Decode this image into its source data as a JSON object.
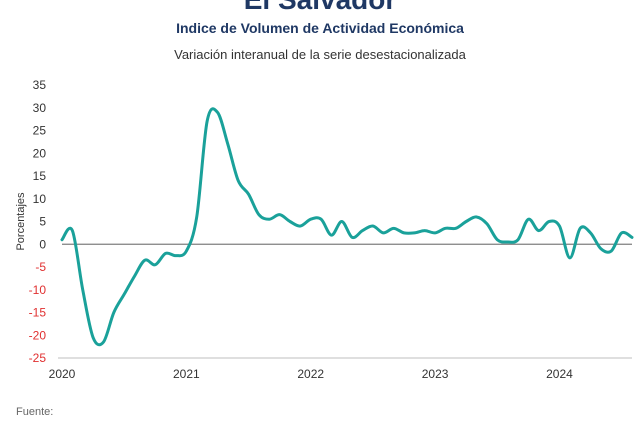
{
  "chart_data": {
    "type": "line",
    "title": "El Salvador",
    "subtitle": "Indice de Volumen de  Actividad Económica",
    "subtitle2": "Variación interanual de la serie desestacionalizada",
    "ylabel": "Porcentajes",
    "xlabel": "",
    "ylim": [
      -25,
      35
    ],
    "yticks": [
      35,
      30,
      25,
      20,
      15,
      10,
      5,
      0,
      -5,
      -10,
      -15,
      -20,
      -25
    ],
    "xlim": [
      "2020-01",
      "2024-08"
    ],
    "xticks": [
      "2020",
      "2021",
      "2022",
      "2023",
      "2024"
    ],
    "negative_tick_color": "#e03030",
    "positive_tick_color": "#333333",
    "zero_line_color": "#7f7f7f",
    "grid": false,
    "series": [
      {
        "color": "#1aa19a",
        "x": [
          "2020-01",
          "2020-02",
          "2020-03",
          "2020-04",
          "2020-05",
          "2020-06",
          "2020-07",
          "2020-08",
          "2020-09",
          "2020-10",
          "2020-11",
          "2020-12",
          "2021-01",
          "2021-02",
          "2021-03",
          "2021-04",
          "2021-05",
          "2021-06",
          "2021-07",
          "2021-08",
          "2021-09",
          "2021-10",
          "2021-11",
          "2021-12",
          "2022-01",
          "2022-02",
          "2022-03",
          "2022-04",
          "2022-05",
          "2022-06",
          "2022-07",
          "2022-08",
          "2022-09",
          "2022-10",
          "2022-11",
          "2022-12",
          "2023-01",
          "2023-02",
          "2023-03",
          "2023-04",
          "2023-05",
          "2023-06",
          "2023-07",
          "2023-08",
          "2023-09",
          "2023-10",
          "2023-11",
          "2023-12",
          "2024-01",
          "2024-02",
          "2024-03",
          "2024-04",
          "2024-05",
          "2024-06",
          "2024-07",
          "2024-08"
        ],
        "values": [
          1.0,
          3.0,
          -10.0,
          -20.5,
          -21.5,
          -15.0,
          -11.0,
          -7.0,
          -3.5,
          -4.5,
          -2.0,
          -2.5,
          -1.5,
          6.0,
          27.0,
          29.0,
          22.0,
          14.0,
          11.0,
          6.5,
          5.5,
          6.5,
          5.0,
          4.0,
          5.5,
          5.5,
          2.0,
          5.0,
          1.5,
          3.0,
          4.0,
          2.5,
          3.5,
          2.5,
          2.5,
          3.0,
          2.5,
          3.5,
          3.5,
          5.0,
          6.0,
          4.5,
          1.0,
          0.5,
          1.0,
          5.5,
          3.0,
          5.0,
          4.0,
          -3.0,
          3.5,
          2.5,
          -1.0,
          -1.5,
          2.5,
          1.5
        ]
      }
    ]
  }
}
